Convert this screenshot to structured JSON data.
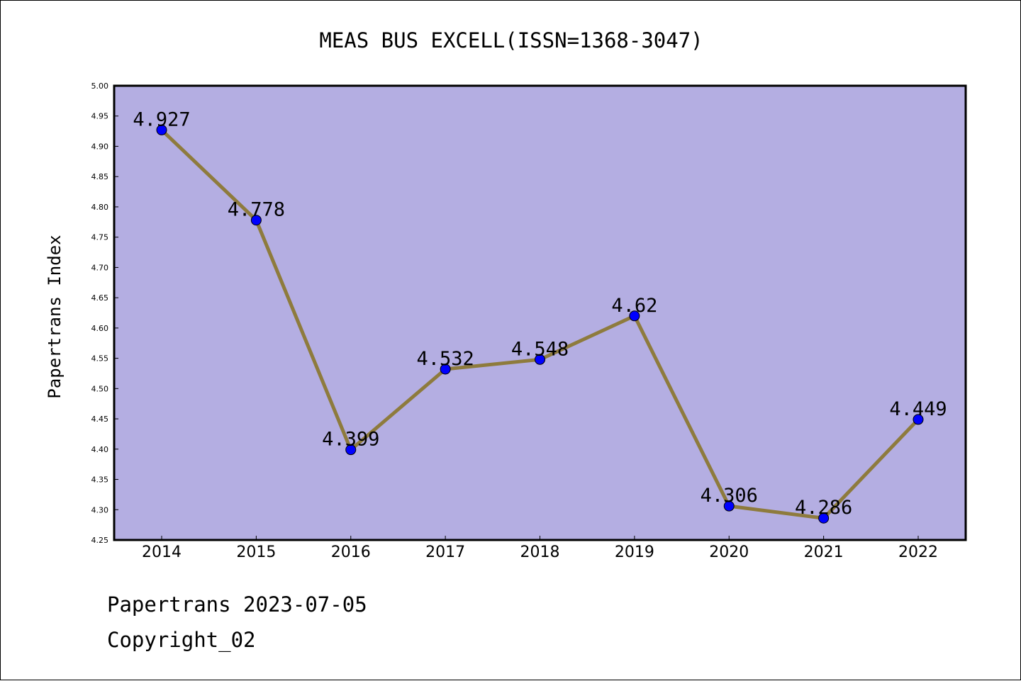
{
  "chart_data": {
    "type": "line",
    "title": "MEAS BUS EXCELL(ISSN=1368-3047)",
    "xlabel": "",
    "ylabel": "Papertrans Index",
    "categories": [
      "2014",
      "2015",
      "2016",
      "2017",
      "2018",
      "2019",
      "2020",
      "2021",
      "2022"
    ],
    "series": [
      {
        "values": [
          4.927,
          4.778,
          4.399,
          4.532,
          4.548,
          4.62,
          4.306,
          4.286,
          4.449
        ],
        "labels": [
          "4.927",
          "4.778",
          "4.399",
          "4.532",
          "4.548",
          "4.62",
          "4.306",
          "4.286",
          "4.449"
        ]
      }
    ],
    "ylim": [
      4.25,
      5.0
    ],
    "yticks": [
      "4.25",
      "4.30",
      "4.35",
      "4.40",
      "4.45",
      "4.50",
      "4.55",
      "4.60",
      "4.65",
      "4.70",
      "4.75",
      "4.80",
      "4.85",
      "4.90",
      "4.95",
      "5.00"
    ],
    "grid": false,
    "colors": {
      "plot_background": "#b4aee2",
      "line": "#8e7b3d",
      "marker": "#0000ff",
      "axis": "#000000"
    }
  },
  "footer": {
    "date_text": "Papertrans 2023-07-05",
    "copyright_text": "Copyright_02"
  }
}
